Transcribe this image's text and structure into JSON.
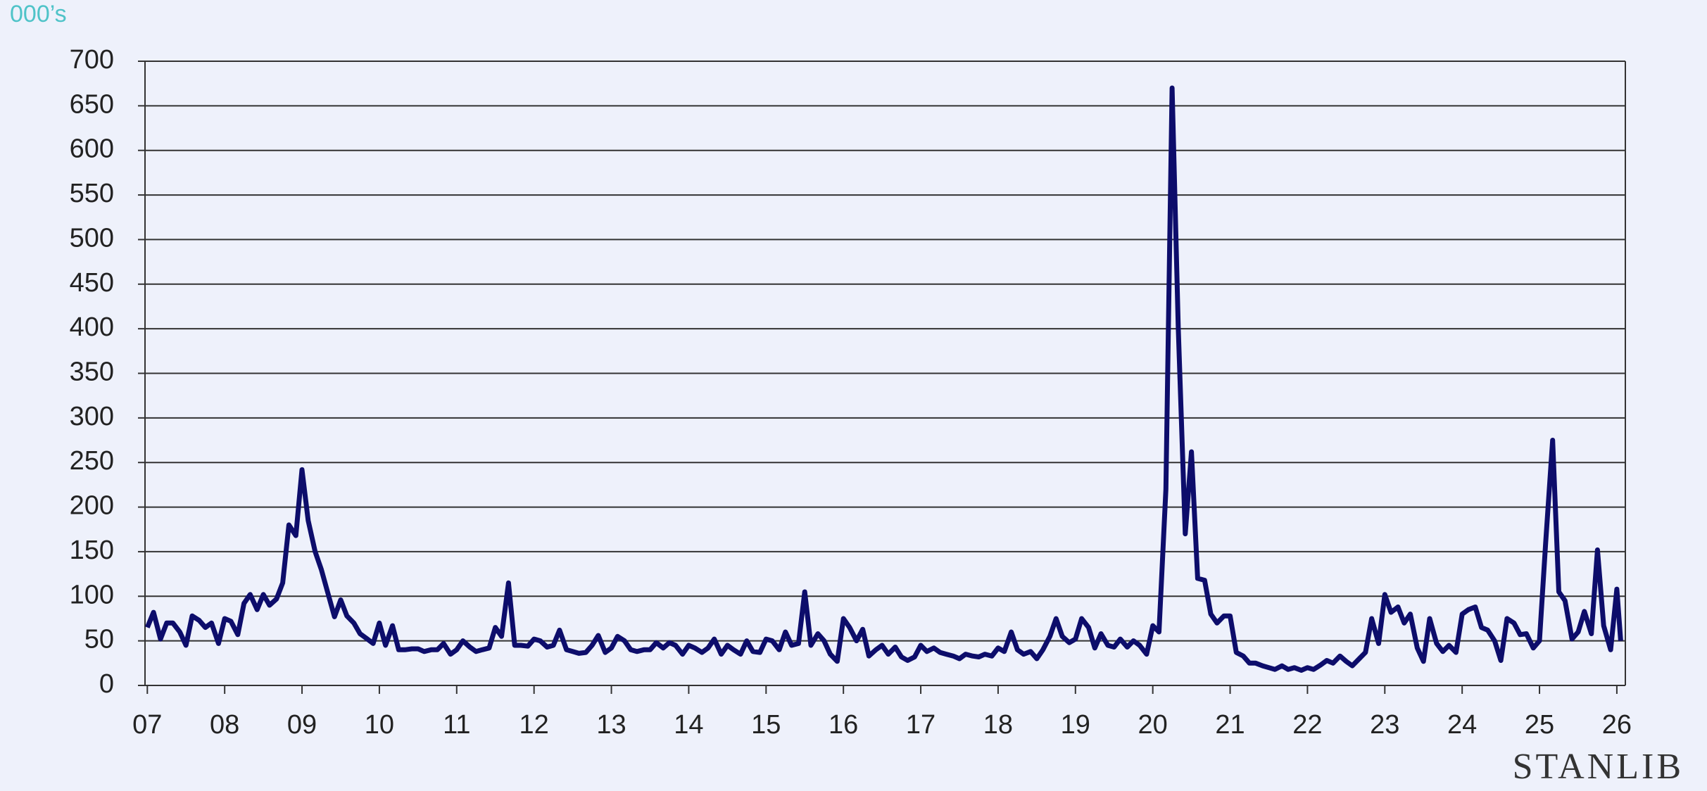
{
  "chart_data": {
    "type": "line",
    "unit_label": "000’s",
    "brand": "STANLIB",
    "x": [
      2007,
      2007.08,
      2007.17,
      2007.25,
      2007.33,
      2007.42,
      2007.5,
      2007.58,
      2007.67,
      2007.75,
      2007.83,
      2007.92,
      2008,
      2008.08,
      2008.17,
      2008.25,
      2008.33,
      2008.42,
      2008.5,
      2008.58,
      2008.67,
      2008.75,
      2008.83,
      2008.92,
      2009,
      2009.08,
      2009.17,
      2009.25,
      2009.33,
      2009.42,
      2009.5,
      2009.58,
      2009.67,
      2009.75,
      2009.83,
      2009.92,
      2010,
      2010.08,
      2010.17,
      2010.25,
      2010.33,
      2010.42,
      2010.5,
      2010.58,
      2010.67,
      2010.75,
      2010.83,
      2010.92,
      2011,
      2011.08,
      2011.17,
      2011.25,
      2011.33,
      2011.42,
      2011.5,
      2011.58,
      2011.67,
      2011.75,
      2011.83,
      2011.92,
      2012,
      2012.08,
      2012.17,
      2012.25,
      2012.33,
      2012.42,
      2012.5,
      2012.58,
      2012.67,
      2012.75,
      2012.83,
      2012.92,
      2013,
      2013.08,
      2013.17,
      2013.25,
      2013.33,
      2013.42,
      2013.5,
      2013.58,
      2013.67,
      2013.75,
      2013.83,
      2013.92,
      2014,
      2014.08,
      2014.17,
      2014.25,
      2014.33,
      2014.42,
      2014.5,
      2014.58,
      2014.67,
      2014.75,
      2014.83,
      2014.92,
      2015,
      2015.08,
      2015.17,
      2015.25,
      2015.33,
      2015.42,
      2015.5,
      2015.58,
      2015.67,
      2015.75,
      2015.83,
      2015.92,
      2016,
      2016.08,
      2016.17,
      2016.25,
      2016.33,
      2016.42,
      2016.5,
      2016.58,
      2016.67,
      2016.75,
      2016.83,
      2016.92,
      2017,
      2017.08,
      2017.17,
      2017.25,
      2017.33,
      2017.42,
      2017.5,
      2017.58,
      2017.67,
      2017.75,
      2017.83,
      2017.92,
      2018,
      2018.08,
      2018.17,
      2018.25,
      2018.33,
      2018.42,
      2018.5,
      2018.58,
      2018.67,
      2018.75,
      2018.83,
      2018.92,
      2019,
      2019.08,
      2019.17,
      2019.25,
      2019.33,
      2019.42,
      2019.5,
      2019.58,
      2019.67,
      2019.75,
      2019.83,
      2019.92,
      2020,
      2020.08,
      2020.17,
      2020.25,
      2020.33,
      2020.42,
      2020.5,
      2020.58,
      2020.67,
      2020.75,
      2020.83,
      2020.92,
      2021,
      2021.08,
      2021.17,
      2021.25,
      2021.33,
      2021.42,
      2021.5,
      2021.58,
      2021.67,
      2021.75,
      2021.83,
      2021.92,
      2022,
      2022.08,
      2022.17,
      2022.25,
      2022.33,
      2022.42,
      2022.5,
      2022.58,
      2022.67,
      2022.75,
      2022.83,
      2022.92,
      2023,
      2023.08,
      2023.17,
      2023.25,
      2023.33,
      2023.42,
      2023.5,
      2023.58,
      2023.67,
      2023.75,
      2023.83,
      2023.92,
      2024,
      2024.08,
      2024.17,
      2024.25,
      2024.33,
      2024.42,
      2024.5,
      2024.58,
      2024.67,
      2024.75,
      2024.83,
      2024.92,
      2025,
      2025.08,
      2025.17,
      2025.25,
      2025.33,
      2025.42,
      2025.5,
      2025.58,
      2025.67,
      2025.75,
      2025.83,
      2025.92,
      2026,
      2026.05
    ],
    "series": [
      {
        "color": "#0d0d6b",
        "values": [
          65,
          82,
          52,
          70,
          70,
          60,
          45,
          78,
          73,
          65,
          70,
          47,
          75,
          72,
          57,
          92,
          102,
          85,
          102,
          90,
          97,
          115,
          180,
          168,
          242,
          185,
          150,
          130,
          105,
          77,
          96,
          78,
          70,
          58,
          53,
          47,
          70,
          45,
          67,
          40,
          40,
          41,
          41,
          38,
          40,
          40,
          47,
          35,
          40,
          50,
          43,
          38,
          40,
          42,
          65,
          55,
          115,
          45,
          45,
          44,
          52,
          50,
          43,
          45,
          62,
          40,
          38,
          36,
          37,
          45,
          56,
          37,
          42,
          55,
          50,
          40,
          38,
          40,
          40,
          48,
          42,
          48,
          45,
          35,
          45,
          42,
          37,
          42,
          52,
          35,
          45,
          40,
          35,
          50,
          38,
          37,
          52,
          50,
          40,
          60,
          45,
          47,
          105,
          45,
          58,
          50,
          35,
          27,
          75,
          65,
          50,
          63,
          33,
          40,
          45,
          35,
          43,
          32,
          28,
          32,
          45,
          38,
          42,
          37,
          35,
          33,
          30,
          35,
          33,
          32,
          35,
          33,
          42,
          38,
          60,
          40,
          35,
          38,
          30,
          40,
          55,
          75,
          55,
          48,
          52,
          75,
          65,
          42,
          58,
          45,
          43,
          52,
          43,
          50,
          45,
          35,
          67,
          60,
          220,
          670,
          400,
          170,
          262,
          120,
          118,
          80,
          70,
          78,
          78,
          37,
          33,
          25,
          25,
          22,
          20,
          18,
          22,
          18,
          20,
          17,
          20,
          18,
          23,
          28,
          25,
          33,
          27,
          22,
          30,
          37,
          75,
          47,
          102,
          82,
          88,
          70,
          80,
          42,
          27,
          75,
          47,
          38,
          45,
          37,
          80,
          85,
          88,
          65,
          62,
          50,
          28,
          75,
          70,
          57,
          58,
          42,
          50,
          160,
          275,
          105,
          95,
          52,
          60,
          83,
          58,
          152,
          67,
          40,
          108,
          50
        ]
      }
    ],
    "xlim": [
      2006.97,
      2026.11
    ],
    "xticks": [
      {
        "value": 2007,
        "label": "07"
      },
      {
        "value": 2008,
        "label": "08"
      },
      {
        "value": 2009,
        "label": "09"
      },
      {
        "value": 2010,
        "label": "10"
      },
      {
        "value": 2011,
        "label": "11"
      },
      {
        "value": 2012,
        "label": "12"
      },
      {
        "value": 2013,
        "label": "13"
      },
      {
        "value": 2014,
        "label": "14"
      },
      {
        "value": 2015,
        "label": "15"
      },
      {
        "value": 2016,
        "label": "16"
      },
      {
        "value": 2017,
        "label": "17"
      },
      {
        "value": 2018,
        "label": "18"
      },
      {
        "value": 2019,
        "label": "19"
      },
      {
        "value": 2020,
        "label": "20"
      },
      {
        "value": 2021,
        "label": "21"
      },
      {
        "value": 2022,
        "label": "22"
      },
      {
        "value": 2023,
        "label": "23"
      },
      {
        "value": 2024,
        "label": "24"
      },
      {
        "value": 2025,
        "label": "25"
      },
      {
        "value": 2026,
        "label": "26"
      }
    ],
    "ylim": [
      0,
      700
    ],
    "yticks": [
      0,
      50,
      100,
      150,
      200,
      250,
      300,
      350,
      400,
      450,
      500,
      550,
      600,
      650,
      700
    ],
    "grid": true
  }
}
